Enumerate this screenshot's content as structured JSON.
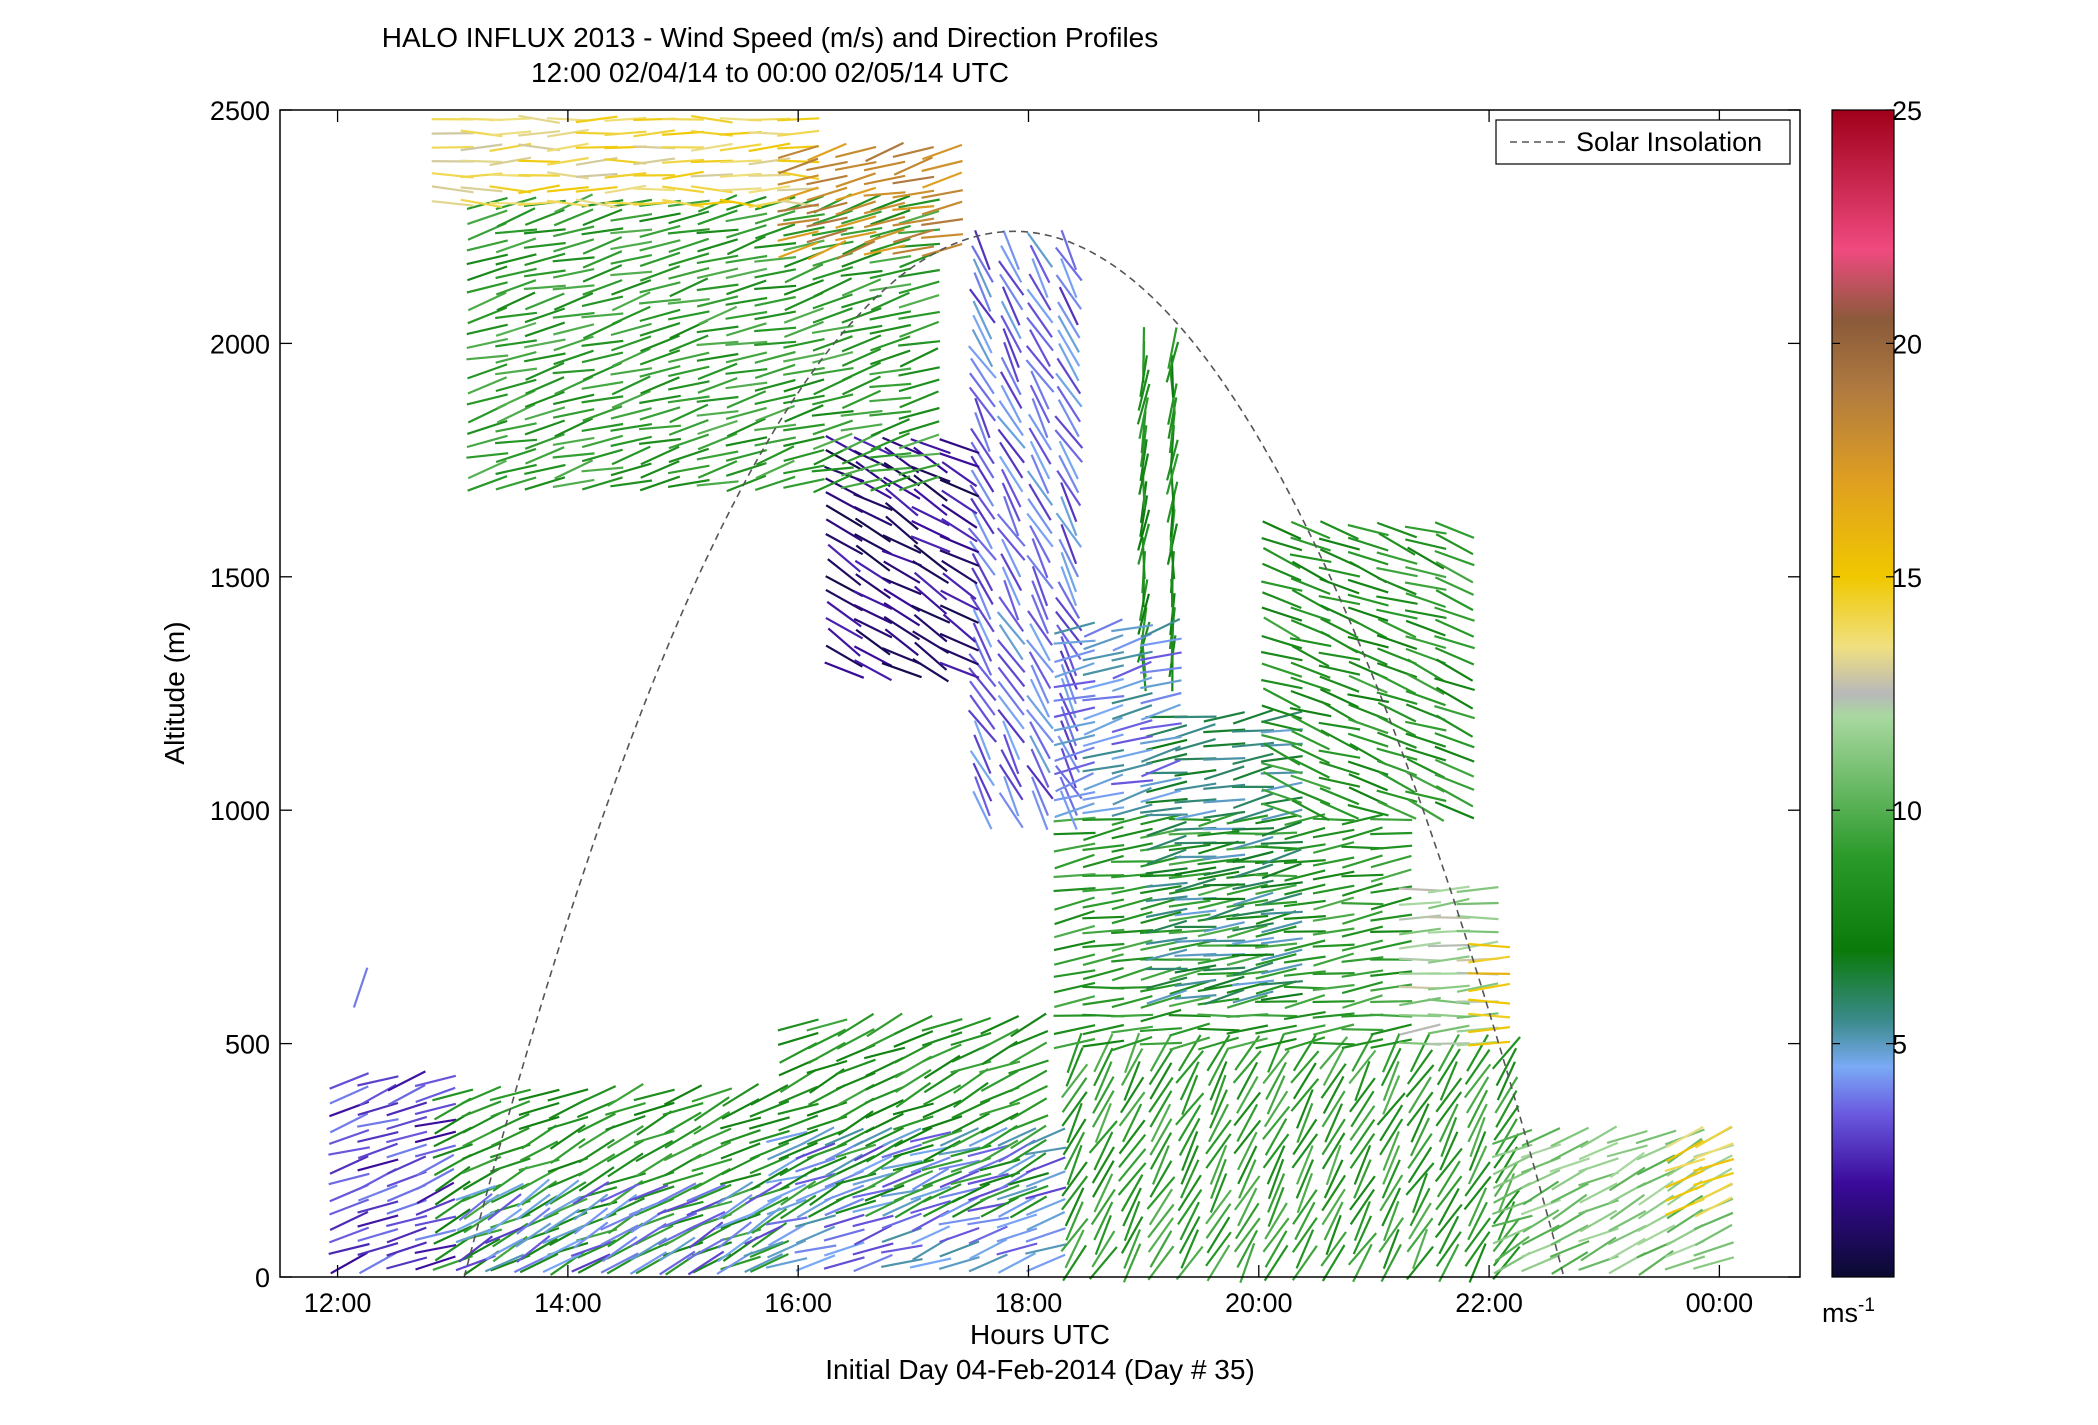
{
  "chart_data": {
    "type": "vector-field",
    "title": "HALO INFLUX 2013 - Wind Speed (m/s) and Direction Profiles",
    "subtitle": "12:00 02/04/14 to 00:00 02/05/14  UTC",
    "xlabel": "Hours UTC",
    "xlabel2": "Initial Day 04-Feb-2014 (Day # 35)",
    "ylabel": "Altitude (m)",
    "xlim": [
      11.5,
      24.7
    ],
    "ylim": [
      0,
      2500
    ],
    "x_ticks": [
      {
        "value": 12,
        "label": "12:00"
      },
      {
        "value": 14,
        "label": "14:00"
      },
      {
        "value": 16,
        "label": "16:00"
      },
      {
        "value": 18,
        "label": "18:00"
      },
      {
        "value": 20,
        "label": "20:00"
      },
      {
        "value": 22,
        "label": "22:00"
      },
      {
        "value": 24,
        "label": "00:00"
      }
    ],
    "y_ticks": [
      {
        "value": 0,
        "label": "0"
      },
      {
        "value": 500,
        "label": "500"
      },
      {
        "value": 1000,
        "label": "1000"
      },
      {
        "value": 1500,
        "label": "1500"
      },
      {
        "value": 2000,
        "label": "2000"
      },
      {
        "value": 2500,
        "label": "2500"
      }
    ],
    "grid": false,
    "legend": {
      "placement": "top-right",
      "entries": [
        {
          "name": "Solar Insolation",
          "style": "dashed",
          "color": "#555555"
        }
      ]
    },
    "colorbar": {
      "min": 0,
      "max": 25,
      "ticks": [
        {
          "value": 5,
          "label": "5"
        },
        {
          "value": 10,
          "label": "10"
        },
        {
          "value": 15,
          "label": "15"
        },
        {
          "value": 20,
          "label": "20"
        },
        {
          "value": 25,
          "label": "25"
        }
      ],
      "unit_label": "ms",
      "unit_superscript": "-1",
      "stops": [
        {
          "v": 0,
          "c": "#0a0a30"
        },
        {
          "v": 2,
          "c": "#3a0a9a"
        },
        {
          "v": 3.5,
          "c": "#6a5ae0"
        },
        {
          "v": 4.5,
          "c": "#7aaaf5"
        },
        {
          "v": 5.5,
          "c": "#3a8a8a"
        },
        {
          "v": 7,
          "c": "#0a7a0a"
        },
        {
          "v": 9,
          "c": "#2a9a2a"
        },
        {
          "v": 12,
          "c": "#a8d8a0"
        },
        {
          "v": 12.5,
          "c": "#b8b8b8"
        },
        {
          "v": 13.5,
          "c": "#f0e080"
        },
        {
          "v": 15,
          "c": "#f0c800"
        },
        {
          "v": 17,
          "c": "#e0a020"
        },
        {
          "v": 19,
          "c": "#b07a40"
        },
        {
          "v": 20.5,
          "c": "#8a5a3a"
        },
        {
          "v": 22,
          "c": "#f04a80"
        },
        {
          "v": 25,
          "c": "#a0001a"
        }
      ]
    },
    "solar_insolation": {
      "peak_x": 17.9,
      "peak_y": 2240,
      "zero_x": [
        13.1,
        22.65
      ]
    },
    "series": [
      {
        "name": "Wind Speed (m/s) and Direction",
        "regions": [
          {
            "x0": 12.1,
            "x1": 12.9,
            "y0": 30,
            "y1": 430,
            "speed": 3,
            "dir": 20
          },
          {
            "x0": 13.0,
            "x1": 15.8,
            "y0": 30,
            "y1": 390,
            "speed": 8.5,
            "dir": 25
          },
          {
            "x0": 13.2,
            "x1": 15.8,
            "y0": 30,
            "y1": 180,
            "speed": 4,
            "dir": 30
          },
          {
            "x0": 15.9,
            "x1": 18.2,
            "y0": 30,
            "y1": 300,
            "speed": 4.2,
            "dir": 20
          },
          {
            "x0": 16.0,
            "x1": 18.2,
            "y0": 150,
            "y1": 560,
            "speed": 8.5,
            "dir": 25
          },
          {
            "x0": 18.4,
            "x1": 22.2,
            "y0": 30,
            "y1": 480,
            "speed": 9,
            "dir": 60
          },
          {
            "x0": 18.4,
            "x1": 21.3,
            "y0": 500,
            "y1": 1000,
            "speed": 8.8,
            "dir": 8
          },
          {
            "x0": 19.2,
            "x1": 20.4,
            "y0": 600,
            "y1": 1200,
            "speed": 5.8,
            "dir": 10
          },
          {
            "x0": 21.4,
            "x1": 22.0,
            "y0": 500,
            "y1": 830,
            "speed": 11.8,
            "dir": 5
          },
          {
            "x0": 22.0,
            "x1": 22.0,
            "y0": 500,
            "y1": 720,
            "speed": 15,
            "dir": 0
          },
          {
            "x0": 22.2,
            "x1": 24.0,
            "y0": 30,
            "y1": 320,
            "speed": 11,
            "dir": 25
          },
          {
            "x0": 23.7,
            "x1": 24.0,
            "y0": 150,
            "y1": 320,
            "speed": 14.5,
            "dir": 20
          },
          {
            "x0": 20.2,
            "x1": 21.7,
            "y0": 1000,
            "y1": 1600,
            "speed": 8.5,
            "dir": -20
          },
          {
            "x0": 19.0,
            "x1": 19.4,
            "y0": 1300,
            "y1": 2000,
            "speed": 8,
            "dir": 85
          },
          {
            "x0": 17.6,
            "x1": 18.4,
            "y0": 1000,
            "y1": 2200,
            "speed": 3.8,
            "dir": -60
          },
          {
            "x0": 16.4,
            "x1": 17.4,
            "y0": 1300,
            "y1": 1800,
            "speed": 1.5,
            "dir": -30
          },
          {
            "x0": 18.4,
            "x1": 19.2,
            "y0": 1000,
            "y1": 1400,
            "speed": 4.5,
            "dir": 15
          },
          {
            "x0": 13.3,
            "x1": 17.2,
            "y0": 1700,
            "y1": 2300,
            "speed": 9,
            "dir": 15
          },
          {
            "x0": 13.0,
            "x1": 16.1,
            "y0": 2300,
            "y1": 2500,
            "speed": 14,
            "dir": 0
          },
          {
            "x0": 16.0,
            "x1": 17.4,
            "y0": 2200,
            "y1": 2420,
            "speed": 18,
            "dir": 15
          },
          {
            "x0": 12.2,
            "x1": 12.2,
            "y0": 620,
            "y1": 620,
            "speed": 4.5,
            "dir": 70
          }
        ]
      }
    ]
  }
}
